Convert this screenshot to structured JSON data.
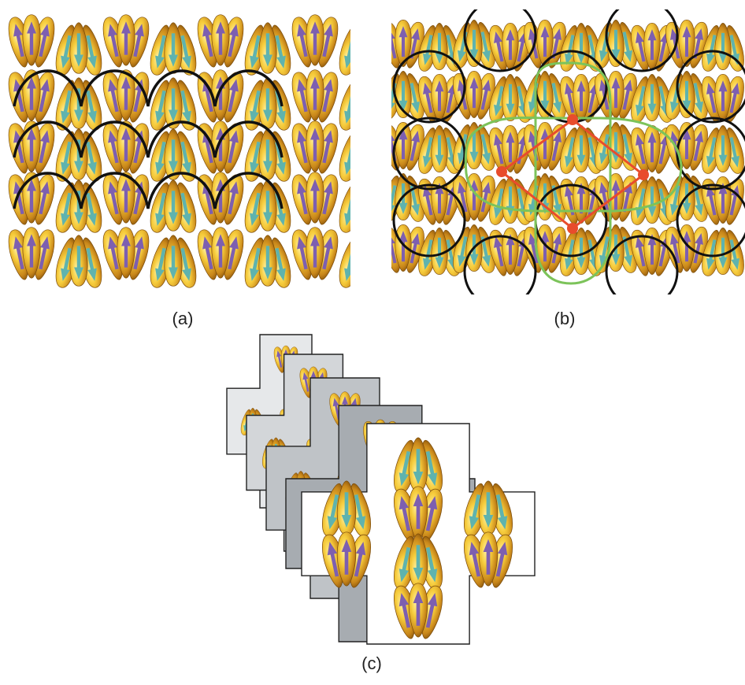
{
  "figure": {
    "panels": [
      {
        "id": "a",
        "label": "(a)"
      },
      {
        "id": "b",
        "label": "(b)"
      },
      {
        "id": "c",
        "label": "(c)"
      }
    ]
  },
  "colors": {
    "lobe_dark": "#7a4a08",
    "lobe_mid": "#c8861a",
    "lobe_light": "#f6cc3c",
    "arrow_up": "#7d5fb0",
    "arrow_down": "#5fb3ae",
    "boundary_line": "#111111",
    "green_loop": "#7cc35a",
    "red_lattice": "#e84c2c",
    "card_shades": [
      "#e6e8ea",
      "#d3d6d9",
      "#bfc3c7",
      "#a7acb1",
      "#ffffff"
    ]
  }
}
